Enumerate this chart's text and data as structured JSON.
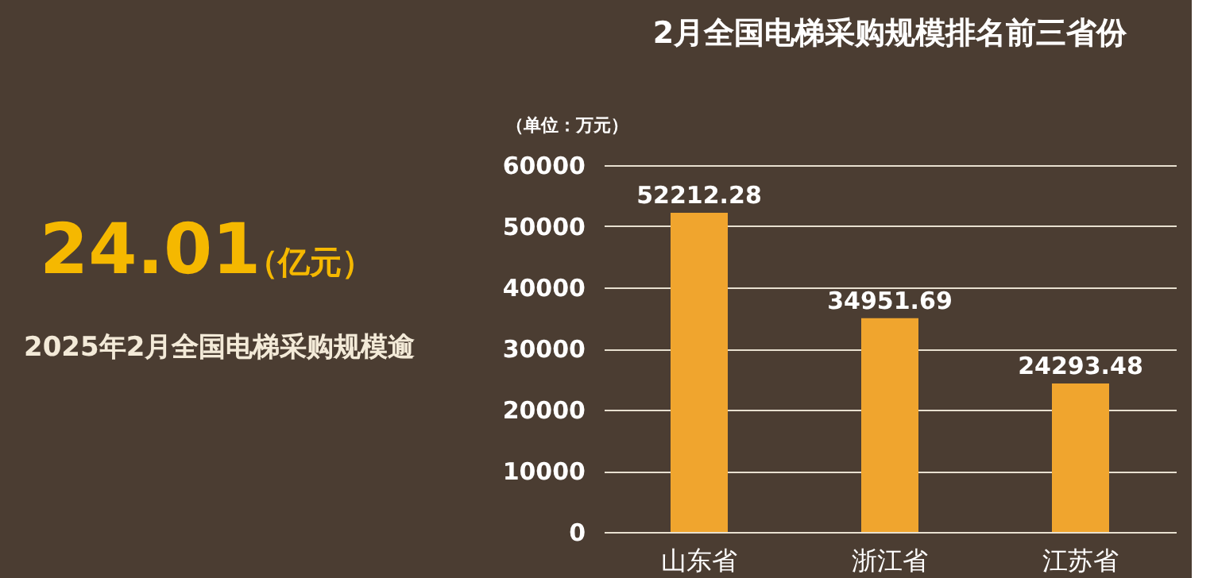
{
  "chart_data": [
    {
      "type": "other",
      "annotations": [
        "24.01",
        "（亿元）",
        "2025年2月全国电梯采购规模逾"
      ]
    },
    {
      "type": "bar",
      "title": "2月全国电梯采购规模排名前三省份",
      "ylabel": "（单位：万元）",
      "categories": [
        "山东省",
        "浙江省",
        "江苏省"
      ],
      "values": [
        52212.28,
        34951.69,
        24293.48
      ],
      "color": "#f0a52e",
      "ylim": [
        0,
        60000
      ],
      "yticks": [
        0,
        10000,
        20000,
        30000,
        40000,
        50000,
        60000
      ],
      "grid": "y",
      "data_labels": true
    }
  ]
}
